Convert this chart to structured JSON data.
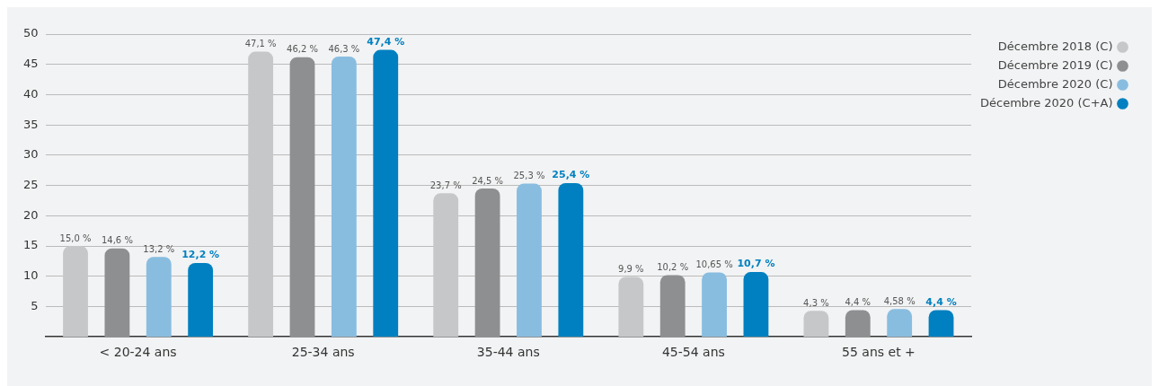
{
  "chart_data": {
    "type": "bar",
    "categories": [
      "< 20-24 ans",
      "25-34 ans",
      "35-44 ans",
      "45-54 ans",
      "55 ans et +"
    ],
    "series": [
      {
        "name": "Décembre 2018 (C)",
        "color": "#c6c7c8",
        "values": [
          15.0,
          47.1,
          23.7,
          9.9,
          4.3
        ],
        "value_labels": [
          "15,0 %",
          "47,1 %",
          "23,7 %",
          "9,9 %",
          "4,3 %"
        ]
      },
      {
        "name": "Décembre 2019 (C)",
        "color": "#8e8f91",
        "values": [
          14.6,
          46.2,
          24.5,
          10.2,
          4.4
        ],
        "value_labels": [
          "14,6 %",
          "46,2 %",
          "24,5 %",
          "10,2 %",
          "4,4 %"
        ]
      },
      {
        "name": "Décembre 2020 (C)",
        "color": "#88bde0",
        "values": [
          13.2,
          46.3,
          25.3,
          10.65,
          4.58
        ],
        "value_labels": [
          "13,2 %",
          "46,3 %",
          "25,3 %",
          "10,65 %",
          "4,58 %"
        ]
      },
      {
        "name": "Décembre 2020 (C+A)",
        "color": "#0080c0",
        "values": [
          12.2,
          47.4,
          25.4,
          10.7,
          4.4
        ],
        "value_labels": [
          "12,2 %",
          "47,4 %",
          "25,4 %",
          "10,7 %",
          "4,4 %"
        ]
      }
    ],
    "ylim": [
      0,
      50
    ],
    "yticks": [
      5,
      10,
      15,
      20,
      25,
      30,
      35,
      40,
      45,
      50
    ],
    "grid": "y",
    "legend": "top right"
  }
}
